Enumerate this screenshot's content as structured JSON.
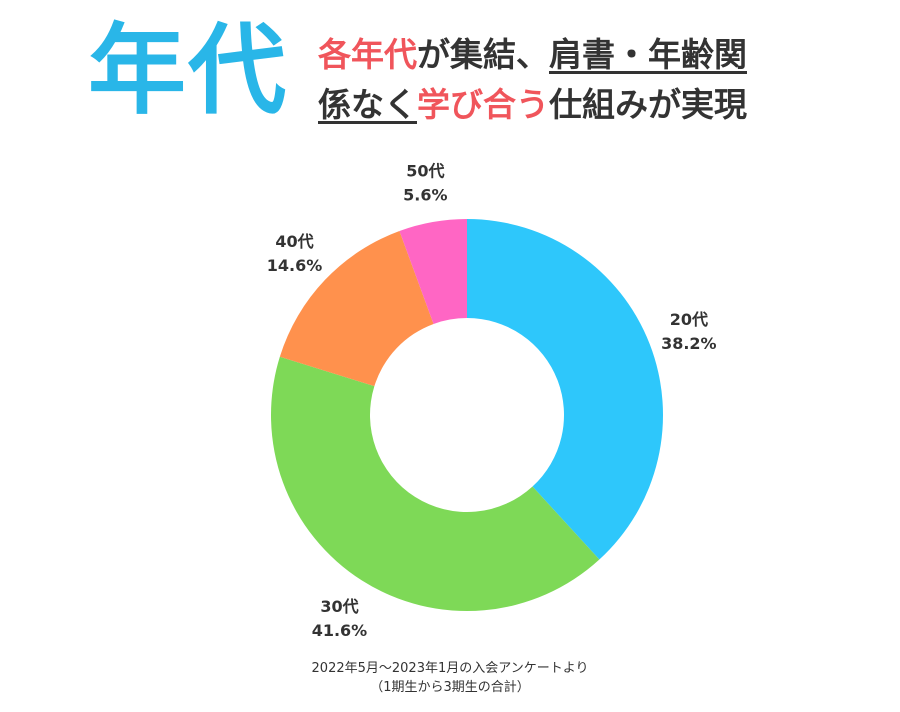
{
  "header": {
    "title": "年代",
    "subtitle_line1": [
      {
        "text": "各年代",
        "style": "accent"
      },
      {
        "text": "が集結、",
        "style": "plain"
      },
      {
        "text": "肩書・年齢関",
        "style": "underline"
      }
    ],
    "subtitle_line2": [
      {
        "text": "係なく",
        "style": "underline"
      },
      {
        "text": "学び合う",
        "style": "accent"
      },
      {
        "text": "仕組みが実現",
        "style": "plain"
      }
    ]
  },
  "colors": {
    "title": "#29b6e8",
    "accent": "#f0555b",
    "text": "#333333"
  },
  "chart_data": {
    "type": "pie",
    "donut": true,
    "title": "",
    "slices": [
      {
        "label": "20代",
        "value": 38.2,
        "display": "38.2%",
        "color": "#2ec7fb"
      },
      {
        "label": "30代",
        "value": 41.6,
        "display": "41.6%",
        "color": "#7ed957"
      },
      {
        "label": "40代",
        "value": 14.6,
        "display": "14.6%",
        "color": "#ff914d"
      },
      {
        "label": "50代",
        "value": 5.6,
        "display": "5.6%",
        "color": "#ff66c4"
      }
    ],
    "start": "top",
    "direction": "clockwise"
  },
  "footnote": {
    "line1": "2022年5月〜2023年1月の入会アンケートより",
    "line2": "（1期生から3期生の合計）"
  }
}
